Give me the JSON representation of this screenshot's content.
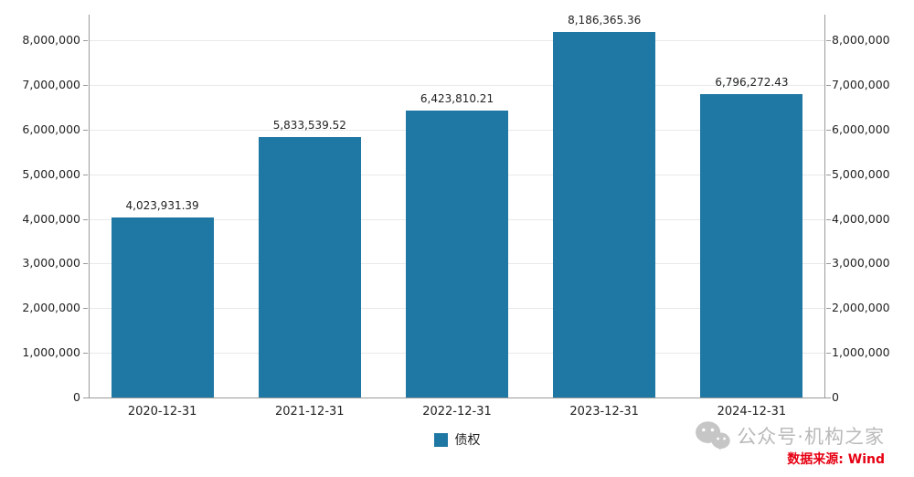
{
  "chart_data": {
    "type": "bar",
    "title": "",
    "xlabel": "",
    "ylabel": "",
    "categories": [
      "2020-12-31",
      "2021-12-31",
      "2022-12-31",
      "2023-12-31",
      "2024-12-31"
    ],
    "values": [
      4023931.39,
      5833539.52,
      6423810.21,
      8186365.36,
      6796272.43
    ],
    "value_labels": [
      "4,023,931.39",
      "5,833,539.52",
      "6,423,810.21",
      "8,186,365.36",
      "6,796,272.43"
    ],
    "series_name": "债权",
    "ylim": [
      0,
      8576000
    ],
    "ytick_values": [
      0,
      1000000,
      2000000,
      3000000,
      4000000,
      5000000,
      6000000,
      7000000,
      8000000
    ],
    "ytick_labels": [
      "0",
      "1,000,000",
      "2,000,000",
      "3,000,000",
      "4,000,000",
      "5,000,000",
      "6,000,000",
      "7,000,000",
      "8,000,000"
    ],
    "grid": true,
    "legend_position": "bottom",
    "bar_color": "#1f77a3"
  },
  "legend": {
    "series_label": "债权"
  },
  "watermark": {
    "icon": "wechat-icon",
    "text": "公众号·机构之家"
  },
  "source": {
    "text": "数据来源: Wind",
    "color": "#e60012"
  }
}
